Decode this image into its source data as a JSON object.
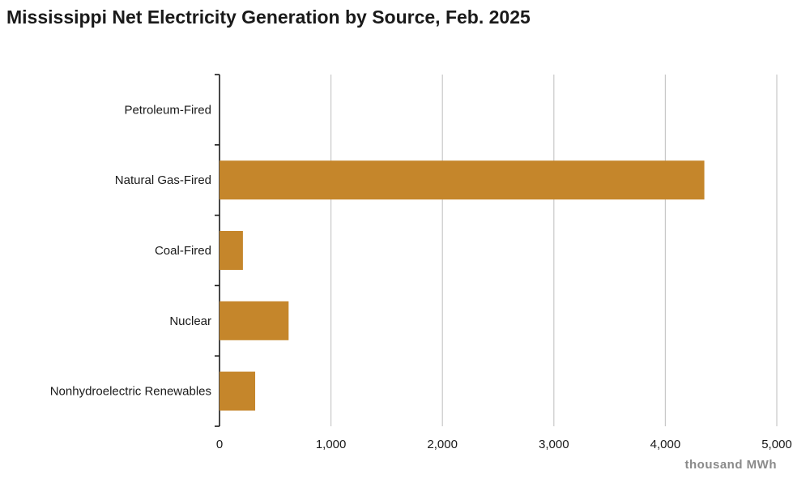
{
  "chart_data": {
    "type": "bar",
    "orientation": "horizontal",
    "title": "Mississippi Net Electricity Generation by Source, Feb. 2025",
    "categories": [
      "Petroleum-Fired",
      "Natural Gas-Fired",
      "Coal-Fired",
      "Nuclear",
      "Nonhydroelectric Renewables"
    ],
    "values": [
      0,
      4350,
      210,
      620,
      320
    ],
    "xlabel": "thousand MWh",
    "ylabel": "",
    "xlim": [
      0,
      5000
    ],
    "xticks": [
      0,
      1000,
      2000,
      3000,
      4000,
      5000
    ],
    "xtick_labels": [
      "0",
      "1,000",
      "2,000",
      "3,000",
      "4,000",
      "5,000"
    ],
    "grid": "vertical",
    "legend": "none",
    "bar_color": "#c5862b",
    "grid_color": "#c8c8c8",
    "axis_color": "#1a1a1a"
  }
}
